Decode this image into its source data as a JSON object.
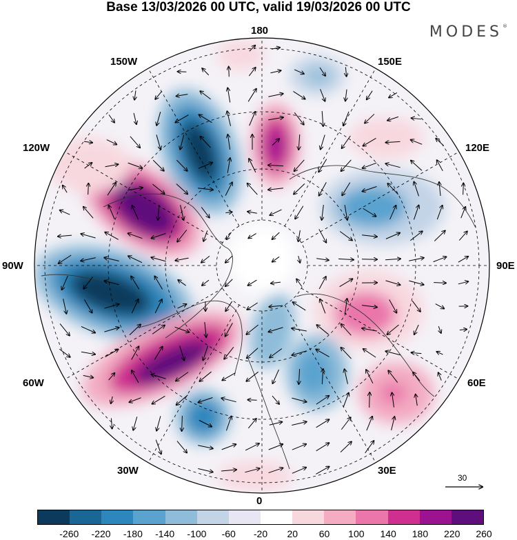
{
  "header": {
    "title": "Base 13/03/2026 00 UTC, valid 19/03/2026 00 UTC",
    "brand": "MODES",
    "brand_mark": "®"
  },
  "map": {
    "projection": "north-polar-stereographic",
    "longitude_labels": {
      "top": "180",
      "top_left": "150W",
      "top_right": "150E",
      "upper_left": "120W",
      "upper_right": "120E",
      "left": "90W",
      "right": "90E",
      "lower_left": "60W",
      "lower_right": "60E",
      "bottom_left": "30W",
      "bottom_right": "30E",
      "bottom": "0"
    }
  },
  "reference_vector": {
    "label": "30"
  },
  "colorbar": {
    "ticks": [
      "-260",
      "-220",
      "-180",
      "-140",
      "-100",
      "-60",
      "-20",
      "20",
      "60",
      "100",
      "140",
      "180",
      "220",
      "260"
    ],
    "colors": [
      "#0b3a5c",
      "#1a6796",
      "#2d87bd",
      "#5aa3cf",
      "#8ebcd9",
      "#c3d4e7",
      "#e8e6f2",
      "#ffffff",
      "#f8d8df",
      "#f3acc2",
      "#ea76aa",
      "#cf2f8e",
      "#9c1391",
      "#5e0f7c"
    ]
  }
}
